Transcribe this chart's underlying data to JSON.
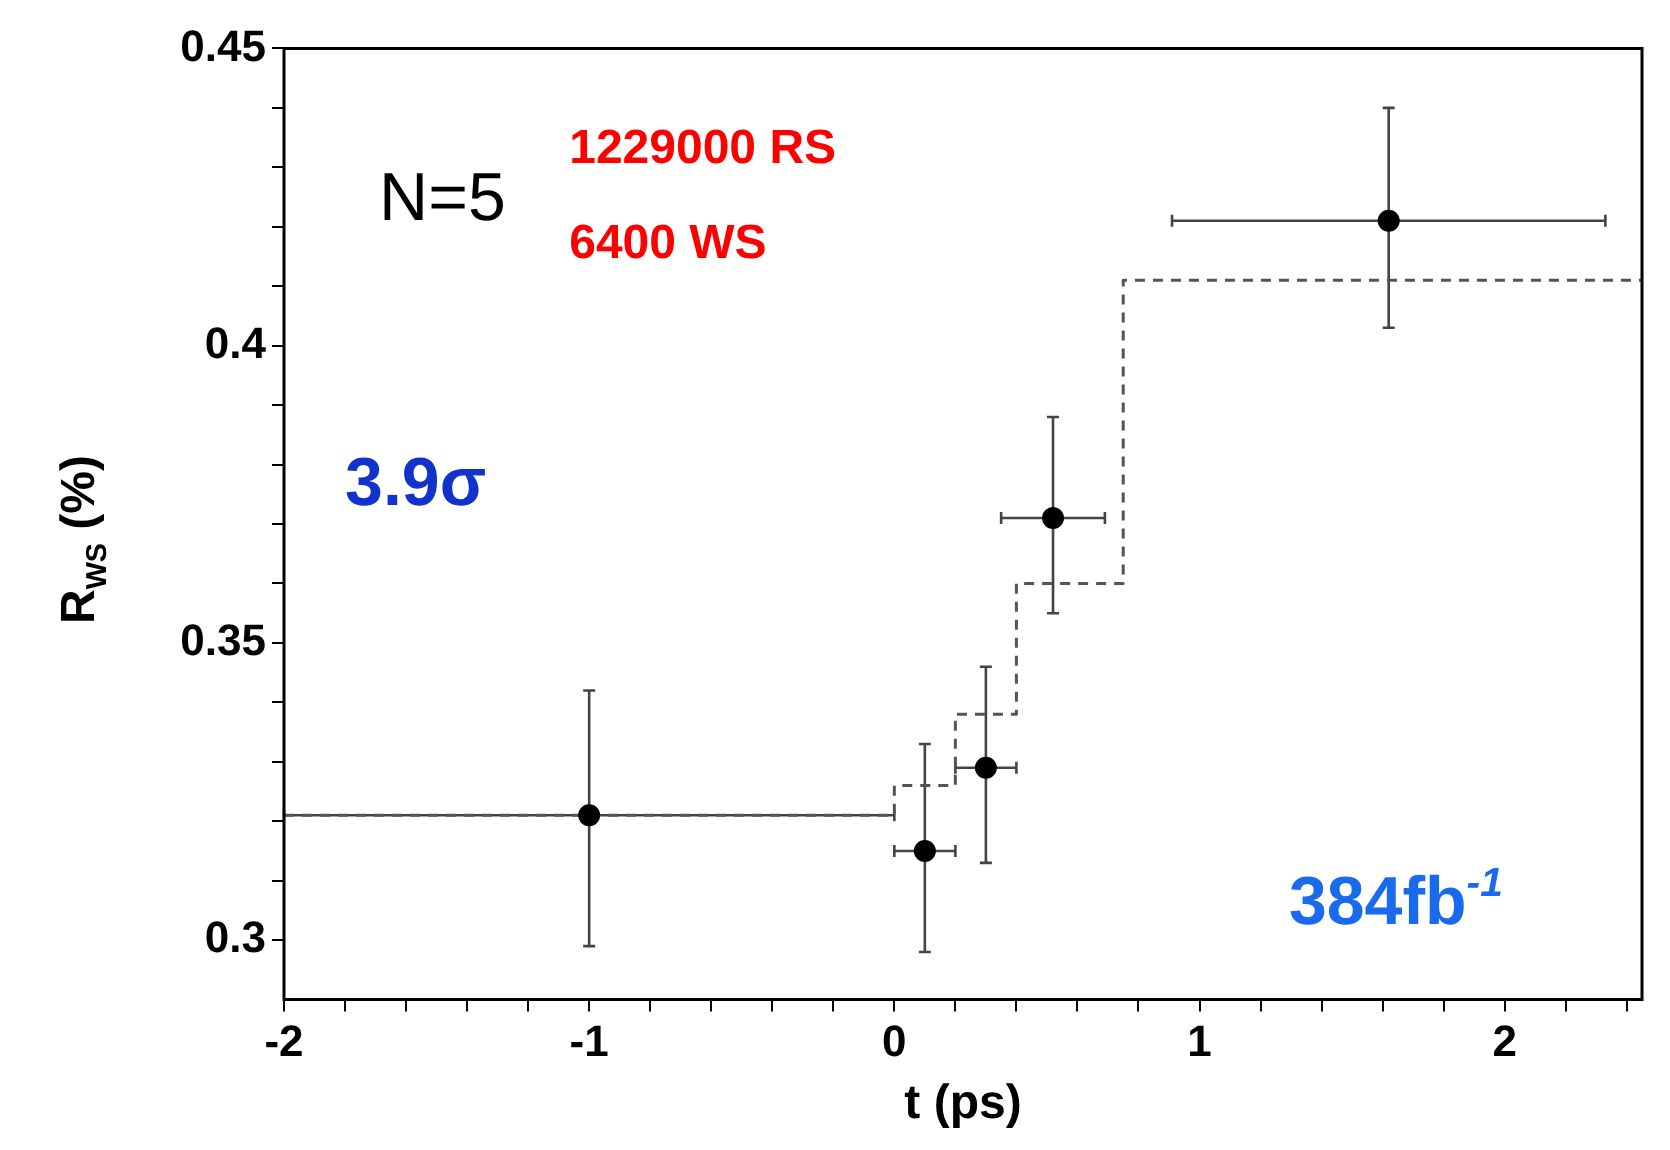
{
  "chart_data": {
    "type": "scatter",
    "xlabel": "t (ps)",
    "ylabel": "R$_{WS}$ (%)",
    "xlim": [
      -2,
      2.45
    ],
    "ylim": [
      0.29,
      0.45
    ],
    "xticks": [
      -2,
      {
        "value": -1.8,
        "label": null
      },
      {
        "value": -1.6,
        "label": null
      },
      {
        "value": -1.4,
        "label": null
      },
      {
        "value": -1.2,
        "label": null
      },
      -1,
      {
        "value": -0.8,
        "label": null
      },
      {
        "value": -0.6,
        "label": null
      },
      {
        "value": -0.4,
        "label": null
      },
      {
        "value": -0.2,
        "label": null
      },
      0,
      {
        "value": 0.2,
        "label": null
      },
      {
        "value": 0.4,
        "label": null
      },
      {
        "value": 0.6,
        "label": null
      },
      {
        "value": 0.8,
        "label": null
      },
      1,
      {
        "value": 1.2,
        "label": null
      },
      {
        "value": 1.4,
        "label": null
      },
      {
        "value": 1.6,
        "label": null
      },
      {
        "value": 1.8,
        "label": null
      },
      2,
      {
        "value": 2.2,
        "label": null
      },
      {
        "value": 2.4,
        "label": null
      }
    ],
    "yticks": [
      0.3,
      {
        "value": 0.31,
        "label": null
      },
      {
        "value": 0.32,
        "label": null
      },
      {
        "value": 0.33,
        "label": null
      },
      {
        "value": 0.34,
        "label": null
      },
      0.35,
      {
        "value": 0.36,
        "label": null
      },
      {
        "value": 0.37,
        "label": null
      },
      {
        "value": 0.38,
        "label": null
      },
      {
        "value": 0.39,
        "label": null
      },
      0.4,
      {
        "value": 0.41,
        "label": null
      },
      {
        "value": 0.42,
        "label": null
      },
      {
        "value": 0.43,
        "label": null
      },
      {
        "value": 0.44,
        "label": null
      },
      0.45
    ],
    "grid": false,
    "legend": false,
    "marker": "circle",
    "series": [
      {
        "color": "#000000",
        "x": [
          -1,
          0.1,
          0.3,
          0.52,
          1.62
        ],
        "values": [
          0.321,
          0.315,
          0.329,
          0.371,
          0.421
        ],
        "errors": [
          [
            0.299,
            0.342
          ],
          [
            0.298,
            0.333
          ],
          [
            0.313,
            0.346
          ],
          [
            0.355,
            0.388
          ],
          [
            0.403,
            0.44
          ]
        ],
        "xerrors": [
          1,
          0.1,
          0.1,
          0.17,
          0.71
        ]
      },
      {
        "type": "step",
        "color": "#555555",
        "line_style": "dashed",
        "marker": "none",
        "x": [
          -2,
          0,
          0.2,
          0.4,
          0.75,
          2.45
        ],
        "values": [
          0.321,
          0.326,
          0.338,
          0.36,
          0.411,
          0.411
        ]
      }
    ],
    "annotations": [
      "N=5",
      "1229000 RS",
      "6400 WS",
      "3.9σ",
      "384fb$^{-1}$"
    ]
  }
}
